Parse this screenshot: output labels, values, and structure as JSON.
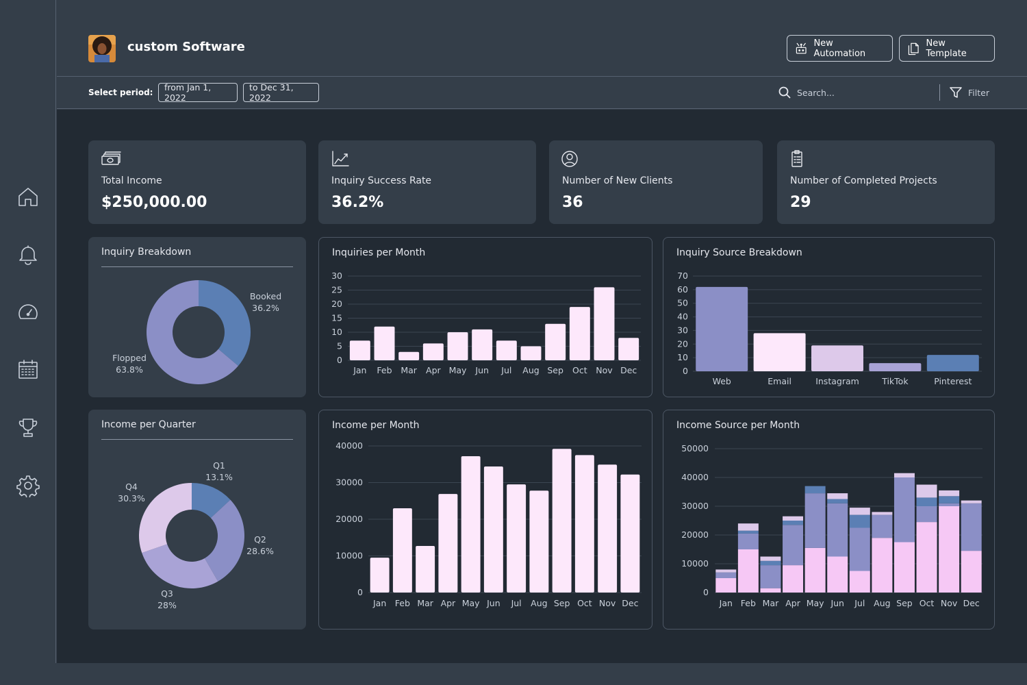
{
  "app": {
    "title": "custom Software"
  },
  "header": {
    "new_automation": "New Automation",
    "new_template": "New Template"
  },
  "filterbar": {
    "period_label": "Select period:",
    "from_date": "from Jan 1, 2022",
    "to_date": "to Dec 31, 2022",
    "search_placeholder": "Search...",
    "filter_label": "Filter"
  },
  "sidebar": {
    "items": [
      "home-icon",
      "bell-icon",
      "dashboard-icon",
      "calendar-icon",
      "trophy-icon",
      "gear-icon"
    ]
  },
  "kpis": [
    {
      "label": "Total Income",
      "value": "$250,000.00",
      "icon": "money-icon"
    },
    {
      "label": "Inquiry Success Rate",
      "value": "36.2%",
      "icon": "trend-chart-icon"
    },
    {
      "label": "Number of New Clients",
      "value": "36",
      "icon": "user-circle-icon"
    },
    {
      "label": "Number of Completed Projects",
      "value": "29",
      "icon": "clipboard-list-icon"
    }
  ],
  "colors": {
    "pink": "#fde8fb",
    "lavender": "#8b8fc6",
    "light_lavender": "#ddc9ea",
    "blue": "#5b7fb4",
    "mid_purple": "#a9a3d6",
    "magenta_pink": "#f6c8f5"
  },
  "chart_data": [
    {
      "id": "inquiry_breakdown",
      "type": "pie",
      "title": "Inquiry Breakdown",
      "slices": [
        {
          "name": "Booked",
          "value": 36.2,
          "label": "36.2%",
          "color": "#5b7fb4"
        },
        {
          "name": "Flopped",
          "value": 63.8,
          "label": "63.8%",
          "color": "#8b8fc6"
        }
      ]
    },
    {
      "id": "inquiries_per_month",
      "type": "bar",
      "title": "Inquiries per Month",
      "categories": [
        "Jan",
        "Feb",
        "Mar",
        "Apr",
        "May",
        "Jun",
        "Jul",
        "Aug",
        "Sep",
        "Oct",
        "Nov",
        "Dec"
      ],
      "values": [
        7,
        12,
        3,
        6,
        10,
        11,
        7,
        5,
        13,
        19,
        26,
        8
      ],
      "yticks": [
        0,
        5,
        10,
        15,
        20,
        25,
        30
      ],
      "ylim": [
        0,
        30
      ],
      "grid": true
    },
    {
      "id": "inquiry_source_breakdown",
      "type": "bar",
      "title": "Inquiry Source Breakdown",
      "categories": [
        "Web",
        "Email",
        "Instagram",
        "TikTok",
        "Pinterest"
      ],
      "values": [
        62,
        28,
        19,
        6,
        12
      ],
      "colors": [
        "#8b8fc6",
        "#fde8fb",
        "#ddc9ea",
        "#a9a3d6",
        "#5b7fb4"
      ],
      "yticks": [
        0,
        10,
        20,
        30,
        40,
        50,
        60,
        70
      ],
      "ylim": [
        0,
        70
      ],
      "grid": true
    },
    {
      "id": "income_per_quarter",
      "type": "pie",
      "title": "Income per Quarter",
      "slices": [
        {
          "name": "Q1",
          "value": 13.1,
          "label": "13.1%",
          "color": "#5b7fb4"
        },
        {
          "name": "Q2",
          "value": 28.6,
          "label": "28.6%",
          "color": "#8b8fc6"
        },
        {
          "name": "Q3",
          "value": 28,
          "label": "28%",
          "color": "#a9a3d6"
        },
        {
          "name": "Q4",
          "value": 30.3,
          "label": "30.3%",
          "color": "#ddc9ea"
        }
      ]
    },
    {
      "id": "income_per_month",
      "type": "bar",
      "title": "Income per Month",
      "categories": [
        "Jan",
        "Feb",
        "Mar",
        "Apr",
        "May",
        "Jun",
        "Jul",
        "Aug",
        "Sep",
        "Oct",
        "Nov",
        "Dec"
      ],
      "values": [
        9500,
        23000,
        12700,
        26900,
        37200,
        34400,
        29500,
        27800,
        39200,
        37500,
        34900,
        32200
      ],
      "yticks": [
        0,
        10000,
        20000,
        30000,
        40000
      ],
      "ylim": [
        0,
        40000
      ],
      "grid": true
    },
    {
      "id": "income_source_per_month",
      "type": "bar",
      "stacked": true,
      "title": "Income Source per Month",
      "categories": [
        "Jan",
        "Feb",
        "Mar",
        "Apr",
        "May",
        "Jun",
        "Jul",
        "Aug",
        "Sep",
        "Oct",
        "Nov",
        "Dec"
      ],
      "series": [
        {
          "values": [
            5000,
            15000,
            1500,
            9500,
            15500,
            12500,
            7500,
            19000,
            17500,
            24500,
            30000,
            14500
          ],
          "color": "#f6c8f5"
        },
        {
          "values": [
            2000,
            5500,
            8000,
            14000,
            19000,
            18500,
            15000,
            8000,
            22500,
            5500,
            1000,
            16500
          ],
          "color": "#8b8fc6"
        },
        {
          "values": [
            0,
            1000,
            1500,
            1500,
            2500,
            1500,
            4500,
            0,
            0,
            3000,
            2500,
            0
          ],
          "color": "#5b7fb4"
        },
        {
          "values": [
            1000,
            2500,
            1500,
            1500,
            0,
            2000,
            2500,
            1000,
            1500,
            4500,
            2000,
            1000
          ],
          "color": "#ddc9ea"
        }
      ],
      "yticks": [
        0,
        10000,
        20000,
        30000,
        40000,
        50000
      ],
      "ylim": [
        0,
        50000
      ],
      "grid": true
    }
  ]
}
